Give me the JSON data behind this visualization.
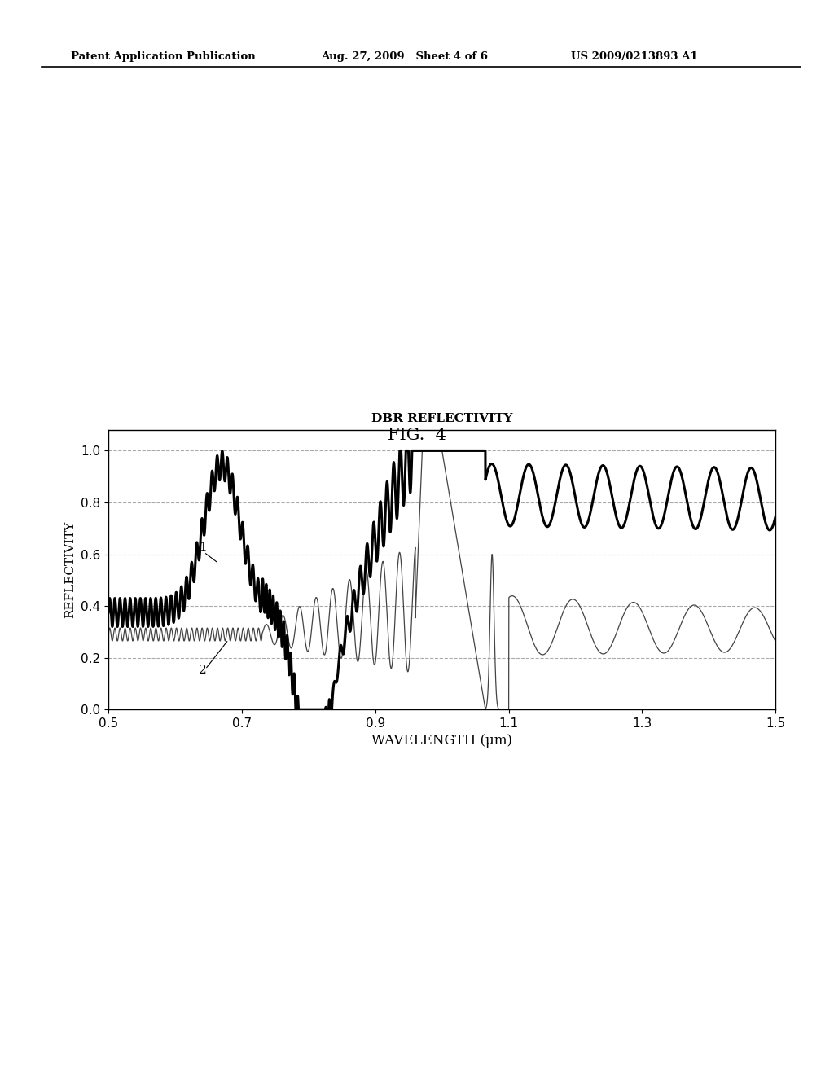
{
  "title": "DBR REFLECTIVITY",
  "fig_label": "FIG.  4",
  "xlabel": "WAVELENGTH (μm)",
  "ylabel": "REFLECTIVITY",
  "xlim": [
    0.5,
    1.5
  ],
  "ylim": [
    0,
    1.08
  ],
  "yticks": [
    0,
    0.2,
    0.4,
    0.6,
    0.8,
    1
  ],
  "xticks": [
    0.5,
    0.7,
    0.9,
    1.1,
    1.3,
    1.5
  ],
  "grid_color": "#aaaaaa",
  "background_color": "#ffffff",
  "curve1_color": "#000000",
  "curve2_color": "#444444",
  "label1": "1",
  "label2": "2",
  "header_left": "Patent Application Publication",
  "header_center": "Aug. 27, 2009   Sheet 4 of 6",
  "header_right": "US 2009/0213893 A1"
}
